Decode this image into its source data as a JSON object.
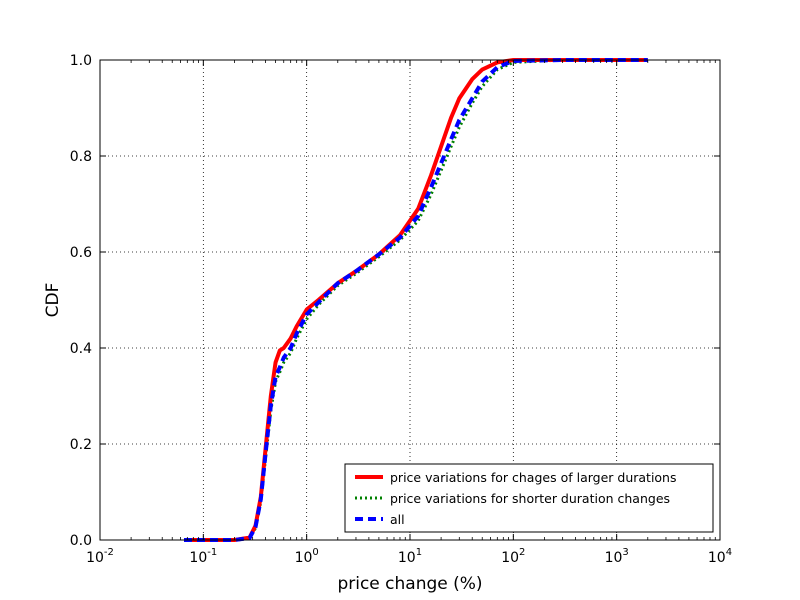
{
  "chart_data": {
    "type": "line",
    "title": "",
    "xlabel": "price change (%)",
    "ylabel": "CDF",
    "xscale": "log",
    "xlim": [
      0.01,
      10000
    ],
    "ylim": [
      0.0,
      1.0
    ],
    "grid": true,
    "legend_position": "lower-right",
    "x_ticks": [
      {
        "base": "10",
        "exp": "-2",
        "value": 0.01
      },
      {
        "base": "10",
        "exp": "-1",
        "value": 0.1
      },
      {
        "base": "10",
        "exp": "0",
        "value": 1
      },
      {
        "base": "10",
        "exp": "1",
        "value": 10
      },
      {
        "base": "10",
        "exp": "2",
        "value": 100
      },
      {
        "base": "10",
        "exp": "3",
        "value": 1000
      },
      {
        "base": "10",
        "exp": "4",
        "value": 10000
      }
    ],
    "y_ticks": [
      {
        "label": "0.0",
        "value": 0.0
      },
      {
        "label": "0.2",
        "value": 0.2
      },
      {
        "label": "0.4",
        "value": 0.4
      },
      {
        "label": "0.6",
        "value": 0.6
      },
      {
        "label": "0.8",
        "value": 0.8
      },
      {
        "label": "1.0",
        "value": 1.0
      }
    ],
    "series": [
      {
        "name": "price variations for chages of larger durations",
        "color": "#ff0000",
        "style": "solid",
        "x": [
          0.065,
          0.2,
          0.28,
          0.32,
          0.36,
          0.4,
          0.45,
          0.5,
          0.55,
          0.6,
          0.7,
          0.8,
          1.0,
          1.3,
          2.0,
          3.0,
          5.0,
          8.0,
          12,
          16,
          20,
          25,
          30,
          40,
          50,
          70,
          100,
          300,
          2000
        ],
        "y": [
          0.0,
          0.0,
          0.005,
          0.03,
          0.09,
          0.19,
          0.3,
          0.37,
          0.395,
          0.4,
          0.42,
          0.445,
          0.48,
          0.5,
          0.535,
          0.56,
          0.595,
          0.635,
          0.69,
          0.76,
          0.82,
          0.88,
          0.92,
          0.96,
          0.98,
          0.995,
          1.0,
          1.0,
          1.0
        ]
      },
      {
        "name": "price variations for shorter duration changes",
        "color": "#008000",
        "style": "dotted",
        "x": [
          0.065,
          0.2,
          0.28,
          0.32,
          0.36,
          0.4,
          0.45,
          0.5,
          0.55,
          0.6,
          0.7,
          0.8,
          1.0,
          1.3,
          2.0,
          3.0,
          5.0,
          8.0,
          12,
          16,
          20,
          25,
          30,
          40,
          50,
          70,
          100,
          300,
          2000
        ],
        "y": [
          0.0,
          0.0,
          0.004,
          0.025,
          0.08,
          0.17,
          0.27,
          0.33,
          0.35,
          0.37,
          0.39,
          0.42,
          0.46,
          0.49,
          0.53,
          0.555,
          0.59,
          0.625,
          0.665,
          0.72,
          0.77,
          0.82,
          0.86,
          0.91,
          0.945,
          0.98,
          0.995,
          1.0,
          1.0
        ]
      },
      {
        "name": "all",
        "color": "#0000ff",
        "style": "dashed",
        "x": [
          0.065,
          0.2,
          0.28,
          0.32,
          0.36,
          0.4,
          0.45,
          0.5,
          0.55,
          0.6,
          0.7,
          0.8,
          1.0,
          1.3,
          2.0,
          3.0,
          5.0,
          8.0,
          12,
          16,
          20,
          25,
          30,
          40,
          50,
          70,
          100,
          300,
          2000
        ],
        "y": [
          0.0,
          0.0,
          0.004,
          0.027,
          0.085,
          0.18,
          0.28,
          0.34,
          0.36,
          0.38,
          0.4,
          0.43,
          0.47,
          0.495,
          0.535,
          0.56,
          0.595,
          0.63,
          0.675,
          0.735,
          0.785,
          0.835,
          0.875,
          0.92,
          0.955,
          0.985,
          0.998,
          1.0,
          1.0
        ]
      }
    ]
  }
}
